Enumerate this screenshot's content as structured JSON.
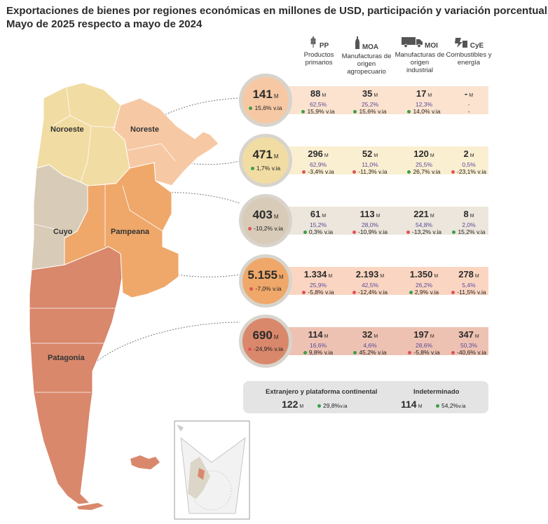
{
  "title": {
    "line1": "Exportaciones de bienes por regiones económicas en millones de USD, participación y variación porcentual.",
    "line2": "Mayo de 2025 respecto a mayo de 2024"
  },
  "categories": [
    {
      "code": "PP",
      "desc1": "Productos",
      "desc2": "primarios",
      "desc3": "",
      "icon": "wheat-icon"
    },
    {
      "code": "MOA",
      "desc1": "Manufacturas de",
      "desc2": "origen",
      "desc3": "agropecuario",
      "icon": "bottle-icon"
    },
    {
      "code": "MOI",
      "desc1": "Manufacturas de",
      "desc2": "origen",
      "desc3": "industrial",
      "icon": "truck-icon"
    },
    {
      "code": "CyE",
      "desc1": "Combustibles y",
      "desc2": "energía",
      "desc3": "",
      "icon": "fuel-icon"
    }
  ],
  "chart_data": {
    "type": "table",
    "title": "Exportaciones de bienes por regiones económicas en millones de USD, participación y variación porcentual. Mayo de 2025 respecto a mayo de 2024",
    "regions": [
      {
        "name": "Noreste",
        "total": "141",
        "unit": "M",
        "var": "15,6%",
        "var_suffix": "v.ia",
        "var_sign": "pos",
        "cells": [
          {
            "value": "88",
            "unit": "M",
            "share": "62,5%",
            "var": "15,9%",
            "suffix": "v.ia",
            "sign": "pos"
          },
          {
            "value": "35",
            "unit": "M",
            "share": "25,2%",
            "var": "15,6%",
            "suffix": "v.ia",
            "sign": "pos"
          },
          {
            "value": "17",
            "unit": "M",
            "share": "12,3%",
            "var": "14,0%",
            "suffix": "v.ia",
            "sign": "pos"
          },
          {
            "value": "-",
            "unit": "M",
            "share": "-",
            "var": "-",
            "suffix": "",
            "sign": "none"
          }
        ]
      },
      {
        "name": "Noroeste",
        "total": "471",
        "unit": "M",
        "var": "1,7%",
        "var_suffix": "v.ia",
        "var_sign": "pos",
        "cells": [
          {
            "value": "296",
            "unit": "M",
            "share": "62,9%",
            "var": "-3,4%",
            "suffix": "v.ia",
            "sign": "neg"
          },
          {
            "value": "52",
            "unit": "M",
            "share": "11,0%",
            "var": "-11,3%",
            "suffix": "v.ia",
            "sign": "neg"
          },
          {
            "value": "120",
            "unit": "M",
            "share": "25,5%",
            "var": "26,7%",
            "suffix": "v.ia",
            "sign": "pos"
          },
          {
            "value": "2",
            "unit": "M",
            "share": "0,5%",
            "var": "-23,1%",
            "suffix": "v.ia",
            "sign": "neg"
          }
        ]
      },
      {
        "name": "Cuyo",
        "total": "403",
        "unit": "M",
        "var": "-10,2%",
        "var_suffix": "v.ia",
        "var_sign": "neg",
        "cells": [
          {
            "value": "61",
            "unit": "M",
            "share": "15,2%",
            "var": "0,3%",
            "suffix": "v.ia",
            "sign": "pos"
          },
          {
            "value": "113",
            "unit": "M",
            "share": "28,0%",
            "var": "-10,9%",
            "suffix": "v.ia",
            "sign": "neg"
          },
          {
            "value": "221",
            "unit": "M",
            "share": "54,8%",
            "var": "-13,2%",
            "suffix": "v.ia",
            "sign": "neg"
          },
          {
            "value": "8",
            "unit": "M",
            "share": "2,0%",
            "var": "15,2%",
            "suffix": "v.ia",
            "sign": "pos"
          }
        ]
      },
      {
        "name": "Pampeana",
        "total": "5.155",
        "unit": "M",
        "var": "-7,0%",
        "var_suffix": "v.ia",
        "var_sign": "neg",
        "cells": [
          {
            "value": "1.334",
            "unit": "M",
            "share": "25,9%",
            "var": "-5,8%",
            "suffix": "v.ia",
            "sign": "neg"
          },
          {
            "value": "2.193",
            "unit": "M",
            "share": "42,5%",
            "var": "-12,4%",
            "suffix": "v.ia",
            "sign": "neg"
          },
          {
            "value": "1.350",
            "unit": "M",
            "share": "26,2%",
            "var": "2,9%",
            "suffix": "v.ia",
            "sign": "pos"
          },
          {
            "value": "278",
            "unit": "M",
            "share": "5,4%",
            "var": "-11,5%",
            "suffix": "v.ia",
            "sign": "neg"
          }
        ]
      },
      {
        "name": "Patagonia",
        "total": "690",
        "unit": "M",
        "var": "-24,9%",
        "var_suffix": "v.ia",
        "var_sign": "neg",
        "cells": [
          {
            "value": "114",
            "unit": "M",
            "share": "16,6%",
            "var": "9,8%",
            "suffix": "v.ia",
            "sign": "pos"
          },
          {
            "value": "32",
            "unit": "M",
            "share": "4,6%",
            "var": "45,2%",
            "suffix": "v.ia",
            "sign": "pos"
          },
          {
            "value": "197",
            "unit": "M",
            "share": "28,6%",
            "var": "-5,8%",
            "suffix": "v.ia",
            "sign": "neg"
          },
          {
            "value": "347",
            "unit": "M",
            "share": "50,3%",
            "var": "-40,6%",
            "suffix": "v.ia",
            "sign": "neg"
          }
        ]
      }
    ],
    "other": [
      {
        "label": "Extranjero y plataforma continental",
        "value": "122",
        "unit": "M",
        "var": "29,8%",
        "suffix": "v.ia",
        "sign": "pos"
      },
      {
        "label": "Indeterminado",
        "value": "114",
        "unit": "M",
        "var": "54,2%",
        "suffix": "v.ia",
        "sign": "pos"
      }
    ]
  },
  "colors": {
    "Noreste": "#f6c9a4",
    "Noroeste": "#f1dca3",
    "Cuyo": "#d8cbb7",
    "Pampeana": "#efa86a",
    "Patagonia": "#d9886c",
    "band_Noreste": "#fbe3d0",
    "band_Noroeste": "#fbefd2",
    "band_Cuyo": "#ece6dc",
    "band_Pampeana": "#fad6c2",
    "band_Patagonia": "#eec2b3",
    "positive": "#3aa04a",
    "negative": "#e0525a"
  }
}
